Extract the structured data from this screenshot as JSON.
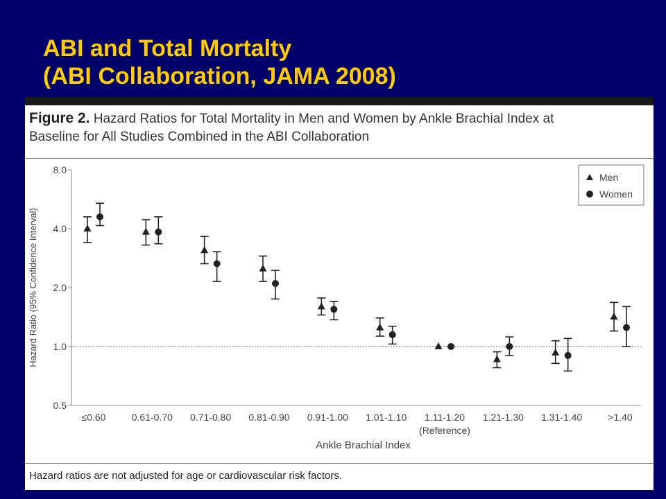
{
  "slide": {
    "title_line1": "ABI and Total Mortalty",
    "title_line2": "(ABI Collaboration, JAMA 2008)"
  },
  "figure": {
    "label": "Figure 2.",
    "caption_line1": "Hazard Ratios for Total Mortality in Men and Women by Ankle Brachial Index at",
    "caption_line2": "Baseline for All Studies Combined in the ABI Collaboration",
    "footnote": "Hazard ratios are not adjusted for age or cardiovascular risk factors."
  },
  "colors": {
    "background": "#00006b",
    "title": "#ffcc00",
    "panel": "#ffffff",
    "ink": "#222222"
  },
  "chart_data": {
    "type": "scatter",
    "xlabel": "Ankle Brachial Index",
    "ylabel": "Hazard Ratio (95% Confidence Interval)",
    "y_scale": "log2",
    "ylim": [
      0.5,
      8.0
    ],
    "y_ticks": [
      "0.5",
      "1.0",
      "2.0",
      "4.0",
      "8.0"
    ],
    "reference_line": 1.0,
    "legend_position": "top-right",
    "categories": [
      "≤0.60",
      "0.61-0.70",
      "0.71-0.80",
      "0.81-0.90",
      "0.91-1.00",
      "1.01-1.10",
      "1.11-1.20",
      "1.21-1.30",
      "1.31-1.40",
      ">1.40"
    ],
    "category_notes": [
      "",
      "",
      "",
      "",
      "",
      "",
      "(Reference)",
      "",
      "",
      ""
    ],
    "series": [
      {
        "name": "Men",
        "marker": "triangle",
        "values": [
          4.0,
          3.85,
          3.1,
          2.5,
          1.6,
          1.25,
          1.0,
          0.86,
          0.93,
          1.42
        ],
        "ci_low": [
          3.4,
          3.3,
          2.65,
          2.15,
          1.45,
          1.13,
          1.0,
          0.78,
          0.82,
          1.2
        ],
        "ci_high": [
          4.6,
          4.45,
          3.65,
          2.9,
          1.77,
          1.4,
          1.0,
          0.94,
          1.07,
          1.68
        ]
      },
      {
        "name": "Women",
        "marker": "circle",
        "values": [
          4.6,
          3.85,
          2.65,
          2.1,
          1.55,
          1.15,
          1.0,
          1.0,
          0.9,
          1.25
        ],
        "ci_low": [
          4.15,
          3.35,
          2.15,
          1.75,
          1.37,
          1.03,
          1.0,
          0.9,
          0.75,
          1.0
        ],
        "ci_high": [
          5.4,
          4.6,
          3.05,
          2.45,
          1.7,
          1.27,
          1.0,
          1.12,
          1.1,
          1.6
        ]
      }
    ]
  }
}
